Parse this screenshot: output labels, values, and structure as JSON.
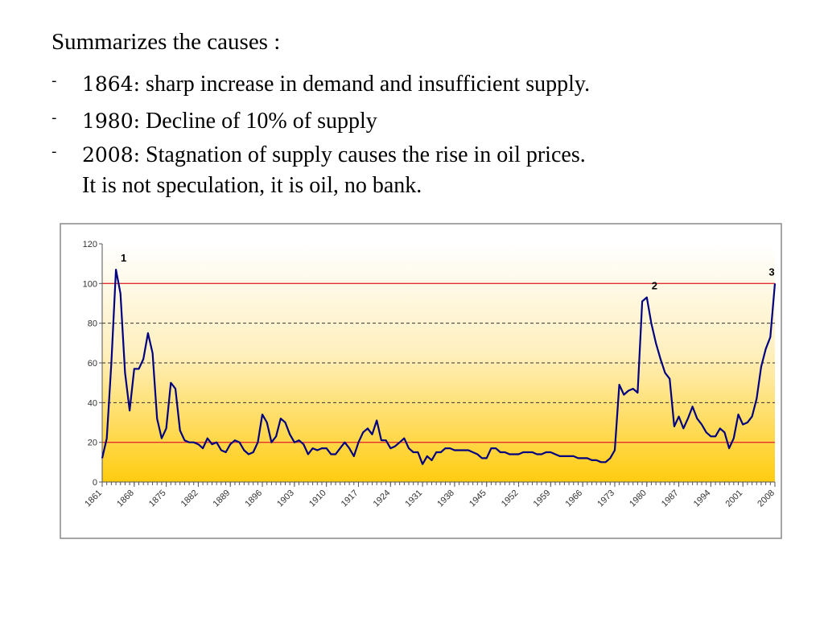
{
  "slide": {
    "title": "Summarizes the causes :",
    "bullets": [
      {
        "marker": "-",
        "label": "1864:",
        "lines": [
          "sharp increase in demand and insufficient supply."
        ]
      },
      {
        "marker": "-",
        "label": "1980:",
        "lines": [
          "Decline of 10% of supply"
        ]
      },
      {
        "marker": "-",
        "label": "2008:",
        "lines": [
          "Stagnation of supply causes the rise in oil prices.",
          "It is not speculation, it is oil, no bank."
        ]
      }
    ]
  },
  "chart_data": {
    "type": "line",
    "x": [
      1861,
      1862,
      1863,
      1864,
      1865,
      1866,
      1867,
      1868,
      1869,
      1870,
      1871,
      1872,
      1873,
      1874,
      1875,
      1876,
      1877,
      1878,
      1879,
      1880,
      1881,
      1882,
      1883,
      1884,
      1885,
      1886,
      1887,
      1888,
      1889,
      1890,
      1891,
      1892,
      1893,
      1894,
      1895,
      1896,
      1897,
      1898,
      1899,
      1900,
      1901,
      1902,
      1903,
      1904,
      1905,
      1906,
      1907,
      1908,
      1909,
      1910,
      1911,
      1912,
      1913,
      1914,
      1915,
      1916,
      1917,
      1918,
      1919,
      1920,
      1921,
      1922,
      1923,
      1924,
      1925,
      1926,
      1927,
      1928,
      1929,
      1930,
      1931,
      1932,
      1933,
      1934,
      1935,
      1936,
      1937,
      1938,
      1939,
      1940,
      1941,
      1942,
      1943,
      1944,
      1945,
      1946,
      1947,
      1948,
      1949,
      1950,
      1951,
      1952,
      1953,
      1954,
      1955,
      1956,
      1957,
      1958,
      1959,
      1960,
      1961,
      1962,
      1963,
      1964,
      1965,
      1966,
      1967,
      1968,
      1969,
      1970,
      1971,
      1972,
      1973,
      1974,
      1975,
      1976,
      1977,
      1978,
      1979,
      1980,
      1981,
      1982,
      1983,
      1984,
      1985,
      1986,
      1987,
      1988,
      1989,
      1990,
      1991,
      1992,
      1993,
      1994,
      1995,
      1996,
      1997,
      1998,
      1999,
      2000,
      2001,
      2002,
      2003,
      2004,
      2005,
      2006,
      2007,
      2008
    ],
    "series": [
      {
        "color": "#000080",
        "values": [
          12,
          22,
          60,
          107,
          95,
          55,
          36,
          57,
          57,
          62,
          75,
          65,
          32,
          22,
          27,
          50,
          47,
          26,
          21,
          20,
          20,
          19,
          17,
          22,
          19,
          20,
          16,
          15,
          19,
          21,
          20,
          16,
          14,
          15,
          20,
          34,
          30,
          20,
          23,
          32,
          30,
          24,
          20,
          21,
          19,
          14,
          17,
          16,
          17,
          17,
          14,
          14,
          17,
          20,
          17,
          13,
          20,
          25,
          27,
          24,
          31,
          21,
          21,
          17,
          18,
          20,
          22,
          17,
          15,
          15,
          9,
          13,
          11,
          15,
          15,
          17,
          17,
          16,
          16,
          16,
          16,
          15,
          14,
          12,
          12,
          17,
          17,
          15,
          15,
          14,
          14,
          14,
          15,
          15,
          15,
          14,
          14,
          15,
          15,
          14,
          13,
          13,
          13,
          13,
          12,
          12,
          12,
          11,
          11,
          10,
          10,
          12,
          16,
          49,
          44,
          46,
          47,
          45,
          91,
          93,
          80,
          70,
          62,
          55,
          52,
          28,
          33,
          27,
          32,
          38,
          32,
          29,
          25,
          23,
          23,
          27,
          25,
          17,
          22,
          34,
          29,
          30,
          33,
          42,
          58,
          67,
          73,
          100
        ]
      }
    ],
    "xlim": [
      1861,
      2008
    ],
    "xticks": [
      1861,
      1868,
      1875,
      1882,
      1889,
      1896,
      1903,
      1910,
      1917,
      1924,
      1931,
      1938,
      1945,
      1952,
      1959,
      1966,
      1973,
      1980,
      1987,
      1994,
      2001,
      2008
    ],
    "ylim": [
      0,
      120
    ],
    "yticks": [
      0,
      20,
      40,
      60,
      80,
      100,
      120
    ],
    "grid": "dashed",
    "hlines": [
      {
        "value": 20,
        "color": "#e03030"
      },
      {
        "value": 100,
        "color": "#e03030"
      }
    ],
    "annotations": [
      {
        "text": "1",
        "x": 1864
      },
      {
        "text": "2",
        "x": 1980
      },
      {
        "text": "3",
        "x": 2008
      }
    ]
  }
}
